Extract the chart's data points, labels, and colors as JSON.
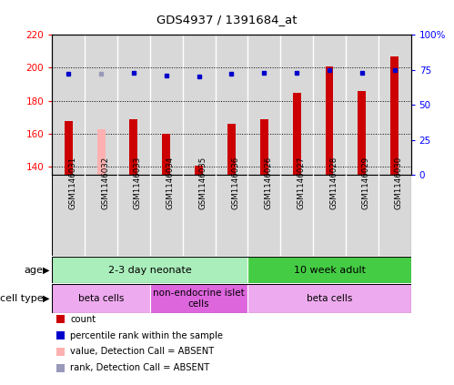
{
  "title": "GDS4937 / 1391684_at",
  "samples": [
    "GSM1146031",
    "GSM1146032",
    "GSM1146033",
    "GSM1146034",
    "GSM1146035",
    "GSM1146036",
    "GSM1146026",
    "GSM1146027",
    "GSM1146028",
    "GSM1146029",
    "GSM1146030"
  ],
  "count_values": [
    168,
    163,
    169,
    160,
    141,
    166,
    169,
    185,
    201,
    186,
    207
  ],
  "rank_values": [
    72,
    72,
    73,
    71,
    70,
    72,
    73,
    73,
    75,
    73,
    75
  ],
  "absent_count_idx": [
    1
  ],
  "absent_rank_idx": [
    1
  ],
  "ylim_left": [
    135,
    220
  ],
  "ylim_right": [
    0,
    100
  ],
  "yticks_left": [
    140,
    160,
    180,
    200,
    220
  ],
  "yticks_right": [
    0,
    25,
    50,
    75,
    100
  ],
  "ytick_right_labels": [
    "0",
    "25",
    "50",
    "75",
    "100%"
  ],
  "bar_color": "#cc0000",
  "bar_absent_color": "#ffb0b0",
  "dot_color": "#0000cc",
  "dot_absent_color": "#9999bb",
  "age_groups": [
    {
      "label": "2-3 day neonate",
      "start": 0,
      "end": 6,
      "color": "#aaeebb"
    },
    {
      "label": "10 week adult",
      "start": 6,
      "end": 11,
      "color": "#44cc44"
    }
  ],
  "cell_type_groups": [
    {
      "label": "beta cells",
      "start": 0,
      "end": 3,
      "color": "#eeaaee"
    },
    {
      "label": "non-endocrine islet\ncells",
      "start": 3,
      "end": 6,
      "color": "#dd66dd"
    },
    {
      "label": "beta cells",
      "start": 6,
      "end": 11,
      "color": "#eeaaee"
    }
  ],
  "legend_items": [
    {
      "label": "count",
      "color": "#cc0000"
    },
    {
      "label": "percentile rank within the sample",
      "color": "#0000cc"
    },
    {
      "label": "value, Detection Call = ABSENT",
      "color": "#ffb0b0"
    },
    {
      "label": "rank, Detection Call = ABSENT",
      "color": "#9999bb"
    }
  ],
  "age_label": "age",
  "cell_type_label": "cell type"
}
